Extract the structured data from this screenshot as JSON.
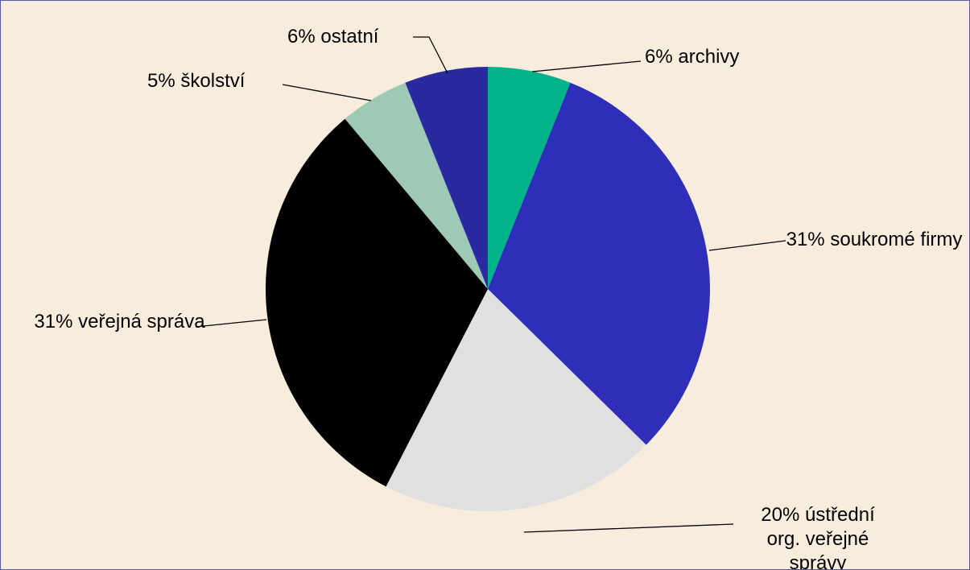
{
  "chart_data": {
    "type": "pie",
    "categories": [
      "archivy",
      "soukromé firmy",
      "ústřední org. veřejné správy",
      "veřejná správa",
      "školství",
      "ostatní"
    ],
    "values": [
      6,
      31,
      20,
      31,
      5,
      6
    ],
    "value_labels": [
      "6%",
      "31%",
      "20%",
      "31%",
      "5%",
      "6%"
    ],
    "colors": [
      "#00b388",
      "#2e2eb8",
      "#e0e0e0",
      "#000000",
      "#9dc9b5",
      "#2a2aa0"
    ]
  }
}
